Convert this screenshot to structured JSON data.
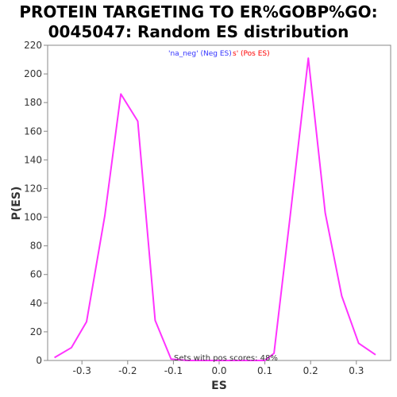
{
  "colors": {
    "line": "#ff33ff",
    "neg": "#3333ff",
    "pos": "#ff0000",
    "axis": "#888888",
    "text": "#333333"
  },
  "chart_data": {
    "type": "line",
    "title_line1": "PROTEIN TARGETING TO ER%GOBP%GO:",
    "title_line2": "0045047: Random ES distribution",
    "xlabel": "ES",
    "ylabel": "P(ES)",
    "xlim": [
      -0.375,
      0.375
    ],
    "ylim": [
      0,
      220
    ],
    "grid": false,
    "xticks": [
      -0.3,
      -0.2,
      -0.1,
      0.0,
      0.1,
      0.2,
      0.3
    ],
    "xtick_labels": [
      "-0.3",
      "-0.2",
      "-0.1",
      "0.0",
      "0.1",
      "0.2",
      "0.3"
    ],
    "yticks": [
      0,
      20,
      40,
      60,
      80,
      100,
      120,
      140,
      160,
      180,
      200,
      220
    ],
    "ytick_labels": [
      "0",
      "20",
      "40",
      "60",
      "80",
      "100",
      "120",
      "140",
      "160",
      "180",
      "200",
      "220"
    ],
    "legend": {
      "placement": "top-center",
      "neg_text": "'na_neg' (Neg ES)",
      "pos_text": "s' (Pos ES)"
    },
    "annotation": "Sets with pos scores: 48%",
    "series": [
      {
        "x": [
          -0.36,
          -0.323,
          -0.29,
          -0.25,
          -0.215,
          -0.178,
          -0.14,
          -0.105,
          -0.07,
          -0.035,
          0.0,
          0.035,
          0.07,
          0.1,
          0.12,
          0.155,
          0.195,
          0.232,
          0.268,
          0.305,
          0.342
        ],
        "y": [
          2,
          9,
          27,
          101,
          186,
          167,
          28,
          1,
          0,
          0,
          0,
          0,
          0,
          0,
          5,
          100,
          211,
          103,
          45,
          12,
          4
        ]
      }
    ]
  }
}
